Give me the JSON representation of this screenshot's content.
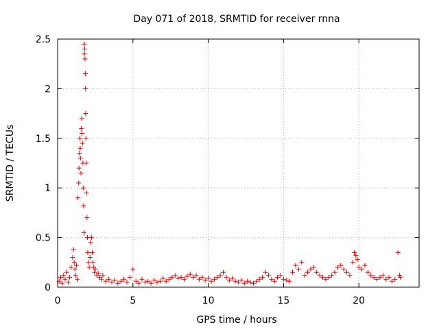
{
  "chart_data": {
    "type": "scatter",
    "title": "Day 071 of 2018, SRMTID for receiver rnna",
    "xlabel": "GPS time / hours",
    "ylabel": "SRMTID / TECUs",
    "xlim": [
      0,
      24
    ],
    "ylim": [
      0,
      2.5
    ],
    "x_ticks": [
      0,
      5,
      10,
      15,
      20
    ],
    "y_ticks": [
      0,
      0.5,
      1,
      1.5,
      2,
      2.5
    ],
    "x_tick_labels": [
      "0",
      "5",
      "10",
      "15",
      "20"
    ],
    "y_tick_labels": [
      "0",
      "0.5",
      "1",
      "1.5",
      "2",
      "2.5"
    ],
    "grid": true,
    "marker": "plus",
    "color": "#e00000",
    "series": [
      {
        "name": "SRMTID",
        "points": [
          [
            0.1,
            0.06
          ],
          [
            0.2,
            0.1
          ],
          [
            0.3,
            0.04
          ],
          [
            0.4,
            0.12
          ],
          [
            0.5,
            0.08
          ],
          [
            0.6,
            0.15
          ],
          [
            0.7,
            0.05
          ],
          [
            0.8,
            0.1
          ],
          [
            0.9,
            0.2
          ],
          [
            1.0,
            0.3
          ],
          [
            1.05,
            0.38
          ],
          [
            1.1,
            0.25
          ],
          [
            1.15,
            0.18
          ],
          [
            1.2,
            0.12
          ],
          [
            1.25,
            0.22
          ],
          [
            1.3,
            0.08
          ],
          [
            1.35,
            0.9
          ],
          [
            1.4,
            1.05
          ],
          [
            1.42,
            1.2
          ],
          [
            1.45,
            1.35
          ],
          [
            1.48,
            1.5
          ],
          [
            1.5,
            1.4
          ],
          [
            1.52,
            1.3
          ],
          [
            1.55,
            1.15
          ],
          [
            1.58,
            1.6
          ],
          [
            1.6,
            1.7
          ],
          [
            1.62,
            1.55
          ],
          [
            1.65,
            1.45
          ],
          [
            1.68,
            1.25
          ],
          [
            1.7,
            1.0
          ],
          [
            1.72,
            0.82
          ],
          [
            1.75,
            0.55
          ],
          [
            1.77,
            2.45
          ],
          [
            1.78,
            2.35
          ],
          [
            1.8,
            2.4
          ],
          [
            1.82,
            2.3
          ],
          [
            1.84,
            2.15
          ],
          [
            1.85,
            2.0
          ],
          [
            1.86,
            1.75
          ],
          [
            1.88,
            1.5
          ],
          [
            1.9,
            1.25
          ],
          [
            1.92,
            0.95
          ],
          [
            1.95,
            0.7
          ],
          [
            1.98,
            0.5
          ],
          [
            2.0,
            0.35
          ],
          [
            2.05,
            0.25
          ],
          [
            2.1,
            0.2
          ],
          [
            2.15,
            0.3
          ],
          [
            2.2,
            0.45
          ],
          [
            2.25,
            0.5
          ],
          [
            2.3,
            0.35
          ],
          [
            2.35,
            0.25
          ],
          [
            2.4,
            0.2
          ],
          [
            2.45,
            0.15
          ],
          [
            2.5,
            0.18
          ],
          [
            2.6,
            0.12
          ],
          [
            2.7,
            0.14
          ],
          [
            2.8,
            0.1
          ],
          [
            2.9,
            0.08
          ],
          [
            3.0,
            0.12
          ],
          [
            3.2,
            0.06
          ],
          [
            3.4,
            0.08
          ],
          [
            3.6,
            0.05
          ],
          [
            3.8,
            0.07
          ],
          [
            4.0,
            0.04
          ],
          [
            4.2,
            0.06
          ],
          [
            4.4,
            0.08
          ],
          [
            4.6,
            0.05
          ],
          [
            4.8,
            0.1
          ],
          [
            5.0,
            0.18
          ],
          [
            5.2,
            0.06
          ],
          [
            5.4,
            0.04
          ],
          [
            5.6,
            0.08
          ],
          [
            5.8,
            0.05
          ],
          [
            6.0,
            0.06
          ],
          [
            6.2,
            0.04
          ],
          [
            6.4,
            0.07
          ],
          [
            6.6,
            0.05
          ],
          [
            6.8,
            0.06
          ],
          [
            7.0,
            0.09
          ],
          [
            7.2,
            0.06
          ],
          [
            7.4,
            0.08
          ],
          [
            7.6,
            0.1
          ],
          [
            7.8,
            0.12
          ],
          [
            8.0,
            0.09
          ],
          [
            8.2,
            0.1
          ],
          [
            8.4,
            0.08
          ],
          [
            8.6,
            0.11
          ],
          [
            8.8,
            0.13
          ],
          [
            9.0,
            0.1
          ],
          [
            9.2,
            0.12
          ],
          [
            9.4,
            0.08
          ],
          [
            9.6,
            0.1
          ],
          [
            9.8,
            0.07
          ],
          [
            10.0,
            0.09
          ],
          [
            10.2,
            0.06
          ],
          [
            10.4,
            0.08
          ],
          [
            10.6,
            0.1
          ],
          [
            10.8,
            0.12
          ],
          [
            11.0,
            0.15
          ],
          [
            11.2,
            0.1
          ],
          [
            11.4,
            0.07
          ],
          [
            11.6,
            0.09
          ],
          [
            11.8,
            0.06
          ],
          [
            12.0,
            0.05
          ],
          [
            12.2,
            0.07
          ],
          [
            12.4,
            0.04
          ],
          [
            12.6,
            0.06
          ],
          [
            12.8,
            0.05
          ],
          [
            13.0,
            0.04
          ],
          [
            13.2,
            0.06
          ],
          [
            13.4,
            0.08
          ],
          [
            13.6,
            0.1
          ],
          [
            13.8,
            0.15
          ],
          [
            14.0,
            0.12
          ],
          [
            14.2,
            0.08
          ],
          [
            14.4,
            0.06
          ],
          [
            14.6,
            0.1
          ],
          [
            14.8,
            0.12
          ],
          [
            15.0,
            0.08
          ],
          [
            15.2,
            0.07
          ],
          [
            15.4,
            0.06
          ],
          [
            15.6,
            0.15
          ],
          [
            15.8,
            0.22
          ],
          [
            16.0,
            0.18
          ],
          [
            16.2,
            0.25
          ],
          [
            16.4,
            0.12
          ],
          [
            16.6,
            0.15
          ],
          [
            16.8,
            0.18
          ],
          [
            17.0,
            0.2
          ],
          [
            17.2,
            0.15
          ],
          [
            17.4,
            0.12
          ],
          [
            17.6,
            0.1
          ],
          [
            17.8,
            0.08
          ],
          [
            18.0,
            0.1
          ],
          [
            18.2,
            0.12
          ],
          [
            18.4,
            0.15
          ],
          [
            18.6,
            0.2
          ],
          [
            18.8,
            0.22
          ],
          [
            19.0,
            0.18
          ],
          [
            19.2,
            0.15
          ],
          [
            19.4,
            0.12
          ],
          [
            19.6,
            0.25
          ],
          [
            19.7,
            0.35
          ],
          [
            19.8,
            0.32
          ],
          [
            19.9,
            0.28
          ],
          [
            20.0,
            0.2
          ],
          [
            20.2,
            0.18
          ],
          [
            20.4,
            0.22
          ],
          [
            20.6,
            0.15
          ],
          [
            20.8,
            0.12
          ],
          [
            21.0,
            0.1
          ],
          [
            21.2,
            0.08
          ],
          [
            21.4,
            0.1
          ],
          [
            21.6,
            0.12
          ],
          [
            21.8,
            0.08
          ],
          [
            22.0,
            0.1
          ],
          [
            22.2,
            0.06
          ],
          [
            22.4,
            0.08
          ],
          [
            22.6,
            0.35
          ],
          [
            22.7,
            0.12
          ],
          [
            22.75,
            0.1
          ]
        ]
      }
    ]
  }
}
